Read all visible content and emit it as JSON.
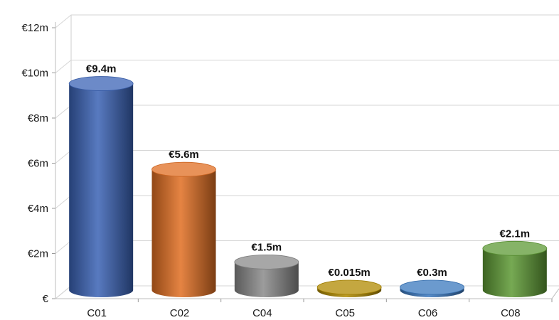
{
  "chart_data": {
    "type": "bar",
    "title": "",
    "xlabel": "",
    "ylabel": "",
    "categories": [
      "C01",
      "C02",
      "C04",
      "C05",
      "C06",
      "C08"
    ],
    "values": [
      9.4,
      5.6,
      1.5,
      0.015,
      0.3,
      2.1
    ],
    "data_labels": [
      "€9.4m",
      "€5.6m",
      "€1.5m",
      "€0.015m",
      "€0.3m",
      "€2.1m"
    ],
    "colors": [
      "#3b63b5",
      "#e06e22",
      "#8a8a8a",
      "#b08a00",
      "#3a78be",
      "#5e9a35"
    ],
    "ylim": [
      0,
      12
    ],
    "y_ticks": [
      0,
      2,
      4,
      6,
      8,
      10,
      12
    ],
    "y_tick_labels": [
      "€",
      "€2m",
      "€4m",
      "€6m",
      "€8m",
      "€10m",
      "€12m"
    ],
    "grid": true,
    "legend": "none",
    "style": "3d-cylinder"
  }
}
